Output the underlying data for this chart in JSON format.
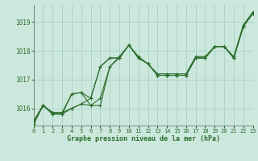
{
  "title": "",
  "xlabel": "Graphe pression niveau de la mer (hPa)",
  "background_color": "#cce8dd",
  "grid_color": "#aad4c8",
  "line_color": "#2d6e2d",
  "xlim": [
    0,
    23
  ],
  "ylim": [
    1015.4,
    1019.6
  ],
  "yticks": [
    1016,
    1017,
    1018,
    1019
  ],
  "xticks": [
    0,
    1,
    2,
    3,
    4,
    5,
    6,
    7,
    8,
    9,
    10,
    11,
    12,
    13,
    14,
    15,
    16,
    17,
    18,
    19,
    20,
    21,
    22,
    23
  ],
  "series": [
    {
      "x": [
        0,
        1,
        2,
        3,
        4,
        5,
        6,
        7,
        8,
        9,
        10,
        11,
        12,
        13,
        14,
        15,
        16,
        17,
        18,
        19,
        20,
        21,
        22,
        23
      ],
      "y": [
        1015.55,
        1016.1,
        1015.85,
        1015.85,
        1016.0,
        1016.15,
        1016.1,
        1016.35,
        1017.45,
        1017.75,
        1018.2,
        1017.75,
        1017.55,
        1017.15,
        1017.15,
        1017.15,
        1017.15,
        1017.75,
        1017.75,
        1018.15,
        1018.15,
        1017.75,
        1018.85,
        1019.3
      ]
    },
    {
      "x": [
        0,
        1,
        2,
        3,
        4,
        5,
        6,
        7,
        8,
        9,
        10,
        11,
        12,
        13,
        14,
        15,
        16,
        17,
        18,
        19,
        20,
        21,
        22,
        23
      ],
      "y": [
        1015.55,
        1016.1,
        1015.85,
        1015.85,
        1016.5,
        1016.55,
        1016.1,
        1016.1,
        1017.45,
        1017.8,
        1018.2,
        1017.8,
        1017.55,
        1017.2,
        1017.2,
        1017.2,
        1017.2,
        1017.8,
        1017.8,
        1018.15,
        1018.15,
        1017.8,
        1018.9,
        1019.35
      ]
    },
    {
      "x": [
        0,
        1,
        2,
        3,
        4,
        5,
        6,
        7,
        8,
        9,
        10,
        11,
        12,
        13,
        14,
        15,
        16,
        17,
        18,
        19,
        20,
        21,
        22,
        23
      ],
      "y": [
        1015.45,
        1016.1,
        1015.8,
        1015.8,
        1016.5,
        1016.55,
        1016.35,
        1017.45,
        1017.75,
        1017.75,
        1018.2,
        1017.75,
        1017.55,
        1017.15,
        1017.15,
        1017.15,
        1017.15,
        1017.75,
        1017.75,
        1018.15,
        1018.15,
        1017.75,
        1018.85,
        1019.3
      ]
    },
    {
      "x": [
        0,
        1,
        2,
        3,
        4,
        5,
        6,
        7,
        8,
        9,
        10,
        11,
        12,
        13,
        14,
        15,
        16,
        17,
        18,
        19,
        20,
        21,
        22,
        23
      ],
      "y": [
        1015.45,
        1016.1,
        1015.8,
        1015.8,
        1016.0,
        1016.15,
        1016.35,
        1017.45,
        1017.75,
        1017.75,
        1018.2,
        1017.75,
        1017.55,
        1017.15,
        1017.15,
        1017.15,
        1017.15,
        1017.75,
        1017.75,
        1018.15,
        1018.15,
        1017.75,
        1018.85,
        1019.3
      ]
    }
  ]
}
